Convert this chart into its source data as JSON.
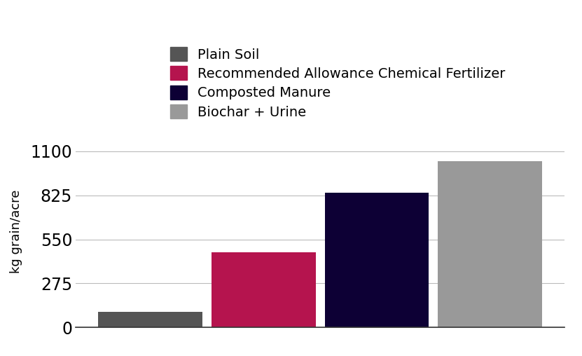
{
  "categories": [
    "Plain Soil",
    "Recommended Allowance Chemical Fertilizer",
    "Composted Manure",
    "Biochar + Urine"
  ],
  "values": [
    100,
    470,
    840,
    1040
  ],
  "bar_colors": [
    "#555555",
    "#b5144e",
    "#0d0035",
    "#999999"
  ],
  "ylabel": "kg grain/acre",
  "yticks": [
    0,
    275,
    550,
    825,
    1100
  ],
  "ylim": [
    0,
    1200
  ],
  "background_color": "#ffffff",
  "legend_labels": [
    "Plain Soil",
    "Recommended Allowance Chemical Fertilizer",
    "Composted Manure",
    "Biochar + Urine"
  ],
  "grid_color": "#bbbbbb",
  "tick_fontsize": 17,
  "ylabel_fontsize": 13,
  "legend_fontsize": 14
}
